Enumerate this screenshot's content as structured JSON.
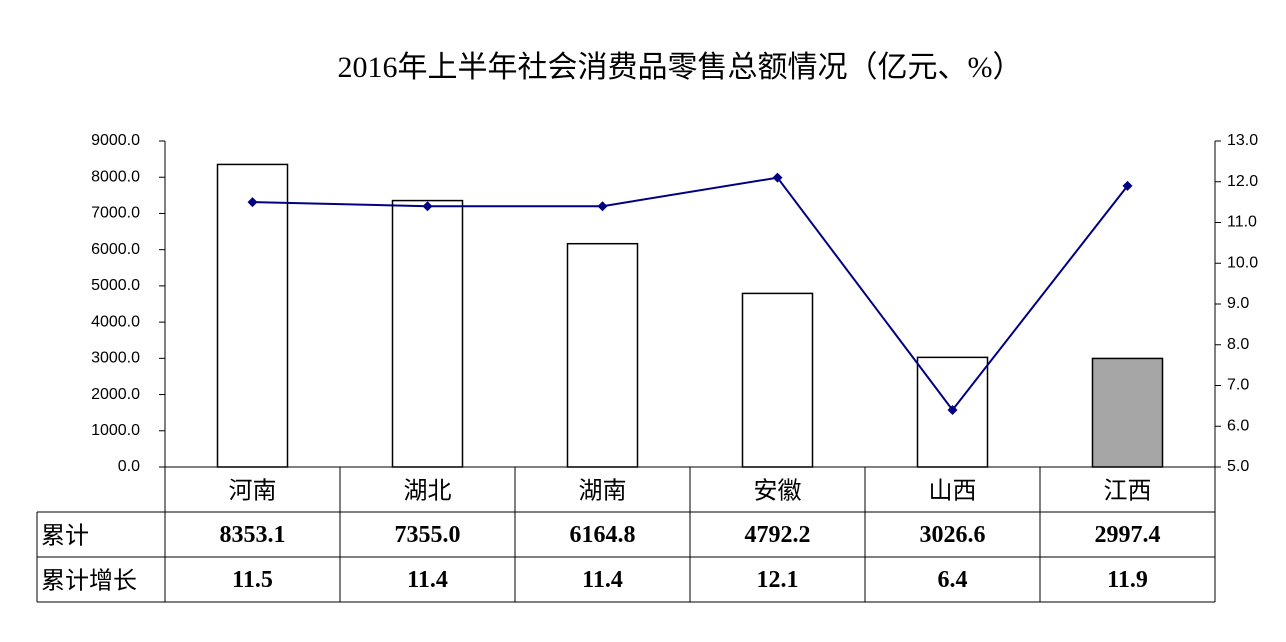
{
  "chart_data": {
    "type": "bar_line",
    "title": "2016年上半年社会消费品零售总额情况（亿元、%）",
    "categories": [
      "河南",
      "湖北",
      "湖南",
      "安徽",
      "山西",
      "江西"
    ],
    "series": [
      {
        "name": "累计",
        "type": "bar",
        "color": "#ffffff",
        "colors": [
          "#ffffff",
          "#ffffff",
          "#ffffff",
          "#ffffff",
          "#ffffff",
          "#a6a6a6"
        ],
        "values": [
          8353.1,
          7355.0,
          6164.8,
          4792.2,
          3026.6,
          2997.4
        ],
        "value_labels": [
          "8353.1",
          "7355.0",
          "6164.8",
          "4792.2",
          "3026.6",
          "2997.4"
        ]
      },
      {
        "name": "累计增长",
        "type": "line",
        "axis": "y2",
        "color": "#000080",
        "values": [
          11.5,
          11.4,
          11.4,
          12.1,
          6.4,
          11.9
        ],
        "value_labels": [
          "11.5",
          "11.4",
          "11.4",
          "12.1",
          "6.4",
          "11.9"
        ]
      }
    ],
    "ylim": [
      0,
      9000
    ],
    "yticks": [
      {
        "value": 0,
        "label": "0.0"
      },
      {
        "value": 1000,
        "label": "1000.0"
      },
      {
        "value": 2000,
        "label": "2000.0"
      },
      {
        "value": 3000,
        "label": "3000.0"
      },
      {
        "value": 4000,
        "label": "4000.0"
      },
      {
        "value": 5000,
        "label": "5000.0"
      },
      {
        "value": 6000,
        "label": "6000.0"
      },
      {
        "value": 7000,
        "label": "7000.0"
      },
      {
        "value": 8000,
        "label": "8000.0"
      },
      {
        "value": 9000,
        "label": "9000.0"
      }
    ],
    "y2lim": [
      5,
      13
    ],
    "y2ticks": [
      {
        "value": 5,
        "label": "5.0"
      },
      {
        "value": 6,
        "label": "6.0"
      },
      {
        "value": 7,
        "label": "7.0"
      },
      {
        "value": 8,
        "label": "8.0"
      },
      {
        "value": 9,
        "label": "9.0"
      },
      {
        "value": 10,
        "label": "10.0"
      },
      {
        "value": 11,
        "label": "11.0"
      },
      {
        "value": 12,
        "label": "12.0"
      },
      {
        "value": 13,
        "label": "13.0"
      }
    ],
    "grid": false
  }
}
